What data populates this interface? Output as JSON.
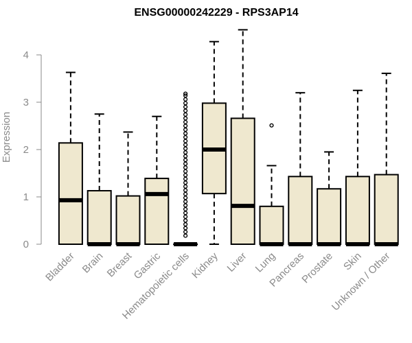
{
  "chart_data": {
    "type": "box",
    "title": "ENSG00000242229 - RPS3AP14",
    "xlabel": "",
    "ylabel": "Expression",
    "ylim": [
      0,
      4.6
    ],
    "yticks": [
      0,
      1,
      2,
      3,
      4
    ],
    "ytick_labels": [
      "0",
      "1",
      "2",
      "3",
      "4"
    ],
    "box_fill": "#efe8cf",
    "box_stroke": "#000000",
    "categories": [
      "Bladder",
      "Brain",
      "Breast",
      "Gastric",
      "Hematopoietic cells",
      "Kidney",
      "Liver",
      "Lung",
      "Pancreas",
      "Prostate",
      "Skin",
      "Unknown / Other"
    ],
    "boxes": [
      {
        "min": 0.0,
        "q1": 0.0,
        "median": 0.93,
        "q3": 2.14,
        "max": 3.63,
        "outliers": []
      },
      {
        "min": 0.0,
        "q1": 0.0,
        "median": 0.0,
        "q3": 1.13,
        "max": 2.75,
        "outliers": []
      },
      {
        "min": 0.0,
        "q1": 0.0,
        "median": 0.0,
        "q3": 1.02,
        "max": 2.37,
        "outliers": []
      },
      {
        "min": 0.0,
        "q1": 0.0,
        "median": 1.06,
        "q3": 1.39,
        "max": 2.7,
        "outliers": []
      },
      {
        "min": 0.0,
        "q1": 0.0,
        "median": 0.0,
        "q3": 0.0,
        "max": 0.0,
        "outliers": [
          0.18,
          0.26,
          0.34,
          0.42,
          0.5,
          0.58,
          0.66,
          0.74,
          0.82,
          0.9,
          0.98,
          1.06,
          1.14,
          1.22,
          1.3,
          1.38,
          1.46,
          1.54,
          1.62,
          1.7,
          1.78,
          1.86,
          1.94,
          2.02,
          2.1,
          2.18,
          2.26,
          2.34,
          2.42,
          2.5,
          2.58,
          2.66,
          2.74,
          2.82,
          2.9,
          2.98,
          3.06,
          3.14,
          3.18
        ]
      },
      {
        "min": 0.0,
        "q1": 1.07,
        "median": 2.0,
        "q3": 2.98,
        "max": 4.28,
        "outliers": []
      },
      {
        "min": 0.0,
        "q1": 0.0,
        "median": 0.81,
        "q3": 2.66,
        "max": 4.53,
        "outliers": []
      },
      {
        "min": 0.0,
        "q1": 0.0,
        "median": 0.0,
        "q3": 0.8,
        "max": 1.66,
        "outliers": [
          2.51
        ]
      },
      {
        "min": 0.0,
        "q1": 0.0,
        "median": 0.0,
        "q3": 1.43,
        "max": 3.2,
        "outliers": []
      },
      {
        "min": 0.0,
        "q1": 0.0,
        "median": 0.0,
        "q3": 1.17,
        "max": 1.95,
        "outliers": []
      },
      {
        "min": 0.0,
        "q1": 0.0,
        "median": 0.0,
        "q3": 1.43,
        "max": 3.25,
        "outliers": []
      },
      {
        "min": 0.0,
        "q1": 0.0,
        "median": 0.0,
        "q3": 1.47,
        "max": 3.61,
        "outliers": []
      }
    ]
  }
}
